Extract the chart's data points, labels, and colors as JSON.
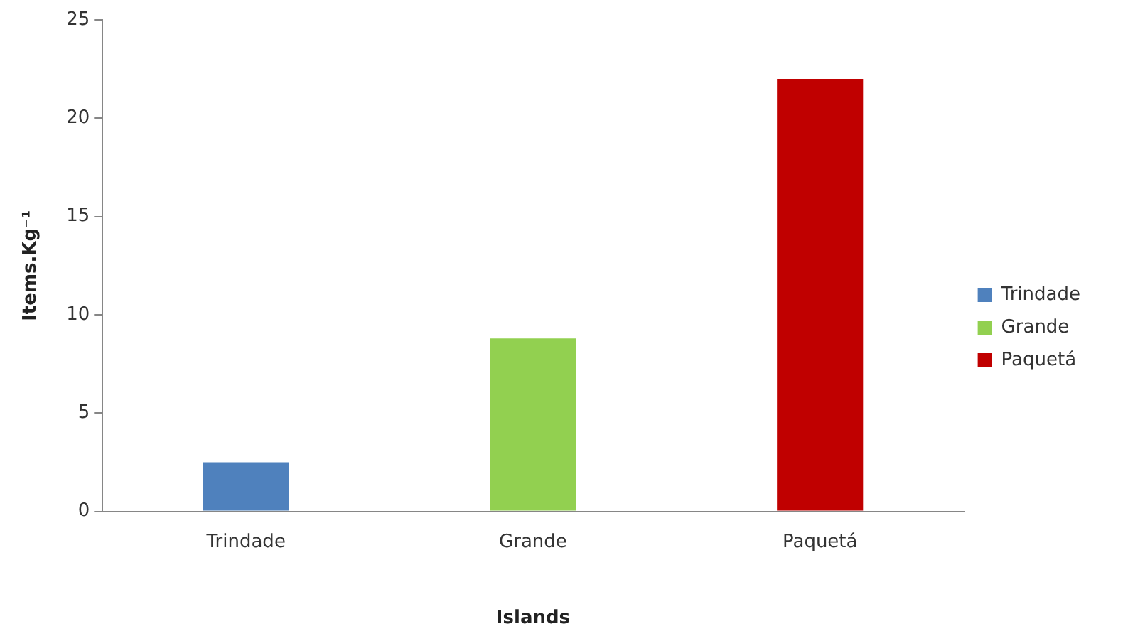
{
  "chart_data": {
    "type": "bar",
    "xlabel": "Islands",
    "ylabel": "Items.Kg⁻¹",
    "categories": [
      "Trindade",
      "Grande",
      "Paquetá"
    ],
    "series": [
      {
        "name": "Trindade",
        "color": "#4f81bd",
        "values": [
          2.5,
          null,
          null
        ]
      },
      {
        "name": "Grande",
        "color": "#92d050",
        "values": [
          null,
          8.8,
          null
        ]
      },
      {
        "name": "Paquetá",
        "color": "#c00000",
        "values": [
          null,
          null,
          22
        ]
      }
    ],
    "ylim": [
      0,
      25
    ],
    "yticks": [
      0,
      5,
      10,
      15,
      20,
      25
    ],
    "grid": false,
    "legend": "right"
  }
}
